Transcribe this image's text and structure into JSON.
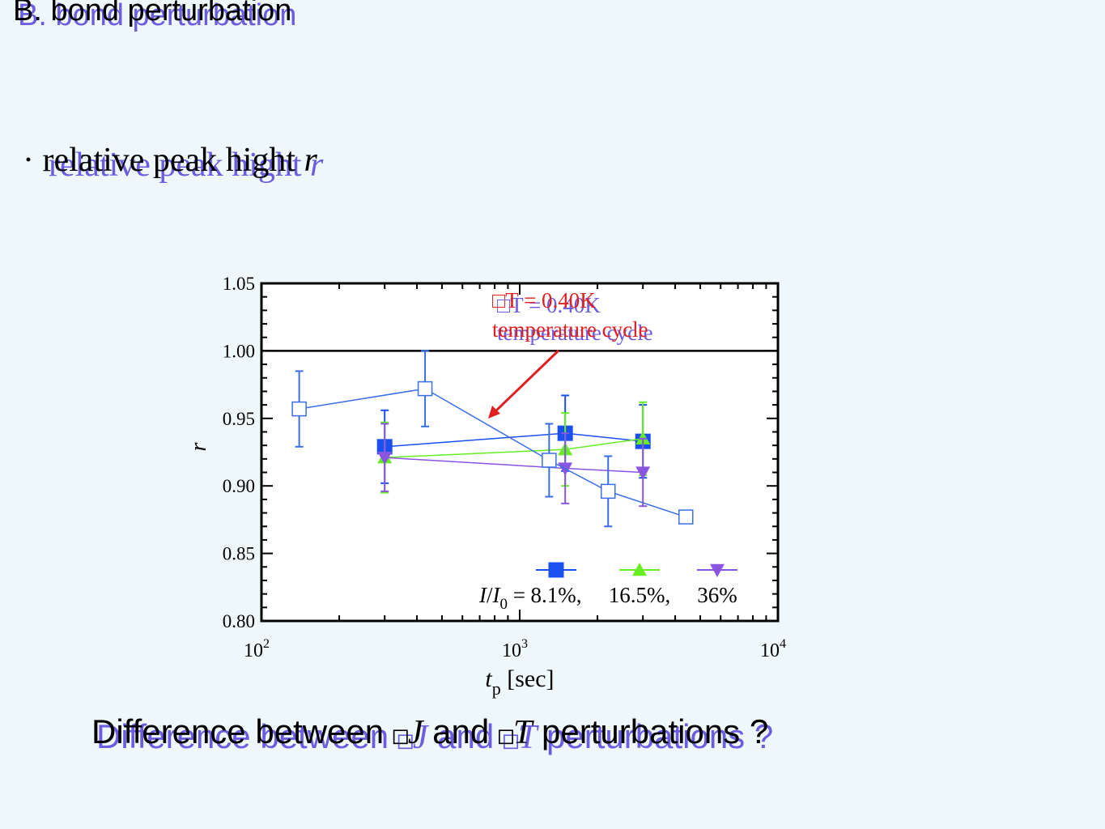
{
  "slide": {
    "title": "B. bond perturbation",
    "bullet_symbol": "·",
    "bullet_text": "relative peak hight ",
    "bullet_var": "r",
    "question": {
      "before": "Difference between ",
      "box1": "□",
      "var1": "J",
      "middle": " and ",
      "box2": "□",
      "var2": "T",
      "after": " perturbations ?"
    }
  },
  "chart_data": {
    "type": "scatter",
    "x_scale": "log",
    "xlim": [
      100,
      10000
    ],
    "ylim": [
      0.8,
      1.05
    ],
    "x_ticks": [
      100,
      1000,
      10000
    ],
    "y_ticks": [
      1.05,
      1.0,
      0.95,
      0.9,
      0.85,
      0.8
    ],
    "xlabel": "t_p [sec]",
    "ylabel": "r",
    "reference_line": 1.0,
    "annotation": {
      "line1_box": "□",
      "line1_text": "T = 0.40K",
      "line2": "temperature cycle",
      "color": "#e02020"
    },
    "legend_prefix": "I/I0 =",
    "legend_position": "bottom-right",
    "series": [
      {
        "name": "8.1%",
        "marker": "square",
        "color": "#1a4ff0",
        "points": [
          {
            "x": 300,
            "y": 0.929,
            "err": 0.027
          },
          {
            "x": 1500,
            "y": 0.939,
            "err": 0.028
          },
          {
            "x": 3000,
            "y": 0.933,
            "err": 0.027
          }
        ]
      },
      {
        "name": "16.5%",
        "marker": "triangle-up",
        "color": "#66ee22",
        "points": [
          {
            "x": 300,
            "y": 0.921,
            "err": 0.026
          },
          {
            "x": 1500,
            "y": 0.927,
            "err": 0.027
          },
          {
            "x": 3000,
            "y": 0.935,
            "err": 0.027
          }
        ]
      },
      {
        "name": "36%",
        "marker": "triangle-down",
        "color": "#8a55e0",
        "points": [
          {
            "x": 300,
            "y": 0.921,
            "err": 0.025
          },
          {
            "x": 1500,
            "y": 0.913,
            "err": 0.026
          },
          {
            "x": 3000,
            "y": 0.91,
            "err": 0.025
          }
        ]
      },
      {
        "name": "",
        "marker": "open-square",
        "color": "#3a6ee8",
        "points": [
          {
            "x": 140,
            "y": 0.957,
            "err": 0.028
          },
          {
            "x": 430,
            "y": 0.972,
            "err": 0.028
          },
          {
            "x": 1300,
            "y": 0.919,
            "err": 0.027
          },
          {
            "x": 2200,
            "y": 0.896,
            "err": 0.026
          },
          {
            "x": 4400,
            "y": 0.877,
            "err": 0
          }
        ]
      }
    ]
  }
}
